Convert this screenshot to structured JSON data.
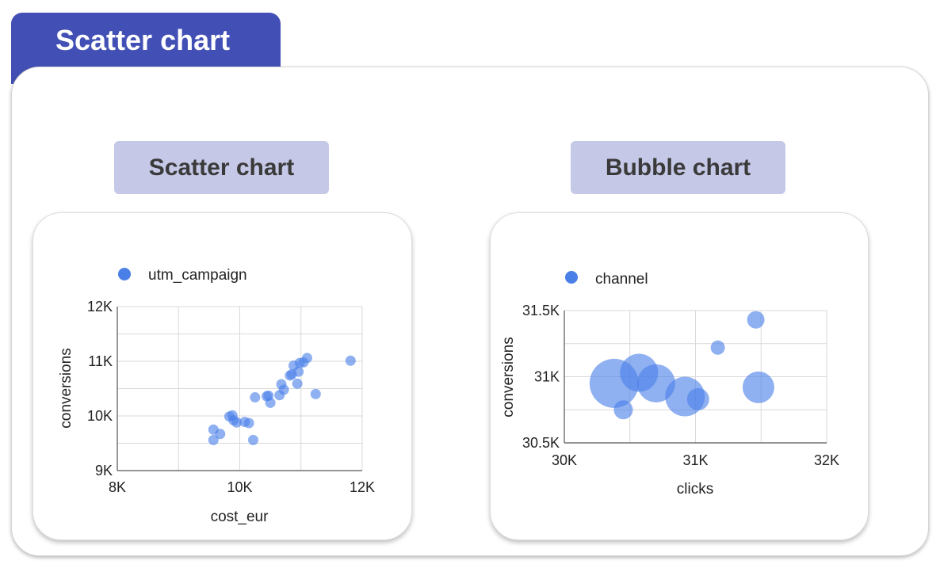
{
  "page": {
    "title": "Scatter chart"
  },
  "charts": {
    "scatter_label": "Scatter chart",
    "bubble_label": "Bubble chart"
  },
  "colors": {
    "header": "#4250b5",
    "chip": "#c5c8e6",
    "point": "#4a7fe8"
  },
  "chart_data": [
    {
      "type": "scatter",
      "title": "Scatter chart",
      "legend": "utm_campaign",
      "xlabel": "cost_eur",
      "ylabel": "conversions",
      "xlim": [
        8000,
        12000
      ],
      "ylim": [
        9000,
        12000
      ],
      "x_ticks": [
        8000,
        10000,
        12000
      ],
      "x_tick_labels": [
        "8K",
        "10K",
        "12K"
      ],
      "y_ticks": [
        9000,
        10000,
        11000,
        12000
      ],
      "y_tick_labels": [
        "9K",
        "10K",
        "11K",
        "12K"
      ],
      "points": [
        {
          "x": 9570,
          "y": 9750
        },
        {
          "x": 9570,
          "y": 9560
        },
        {
          "x": 9680,
          "y": 9670
        },
        {
          "x": 9830,
          "y": 9990
        },
        {
          "x": 9880,
          "y": 10010
        },
        {
          "x": 9900,
          "y": 9920
        },
        {
          "x": 9950,
          "y": 9880
        },
        {
          "x": 10080,
          "y": 9890
        },
        {
          "x": 10150,
          "y": 9870
        },
        {
          "x": 10220,
          "y": 9560
        },
        {
          "x": 10250,
          "y": 10340
        },
        {
          "x": 10440,
          "y": 10360
        },
        {
          "x": 10470,
          "y": 10370
        },
        {
          "x": 10500,
          "y": 10240
        },
        {
          "x": 10650,
          "y": 10380
        },
        {
          "x": 10680,
          "y": 10580
        },
        {
          "x": 10720,
          "y": 10480
        },
        {
          "x": 10820,
          "y": 10740
        },
        {
          "x": 10850,
          "y": 10760
        },
        {
          "x": 10880,
          "y": 10920
        },
        {
          "x": 10940,
          "y": 10590
        },
        {
          "x": 10960,
          "y": 10810
        },
        {
          "x": 10980,
          "y": 10970
        },
        {
          "x": 11040,
          "y": 10980
        },
        {
          "x": 11100,
          "y": 11060
        },
        {
          "x": 11240,
          "y": 10400
        },
        {
          "x": 11810,
          "y": 11010
        }
      ]
    },
    {
      "type": "bubble",
      "title": "Bubble chart",
      "legend": "channel",
      "xlabel": "clicks",
      "ylabel": "conversions",
      "xlim": [
        30000,
        32000
      ],
      "ylim": [
        30500,
        31500
      ],
      "x_ticks": [
        30000,
        31000,
        32000
      ],
      "x_tick_labels": [
        "30K",
        "31K",
        "32K"
      ],
      "y_ticks": [
        30500,
        31000,
        31500
      ],
      "y_tick_labels": [
        "30.5K",
        "31K",
        "31.5K"
      ],
      "points": [
        {
          "x": 30380,
          "y": 30950,
          "size": 31
        },
        {
          "x": 30450,
          "y": 30750,
          "size": 12
        },
        {
          "x": 30570,
          "y": 31030,
          "size": 24
        },
        {
          "x": 30700,
          "y": 30950,
          "size": 24
        },
        {
          "x": 30920,
          "y": 30850,
          "size": 25
        },
        {
          "x": 31020,
          "y": 30830,
          "size": 14
        },
        {
          "x": 31170,
          "y": 31220,
          "size": 9
        },
        {
          "x": 31460,
          "y": 31430,
          "size": 11
        },
        {
          "x": 31480,
          "y": 30920,
          "size": 20
        }
      ]
    }
  ]
}
